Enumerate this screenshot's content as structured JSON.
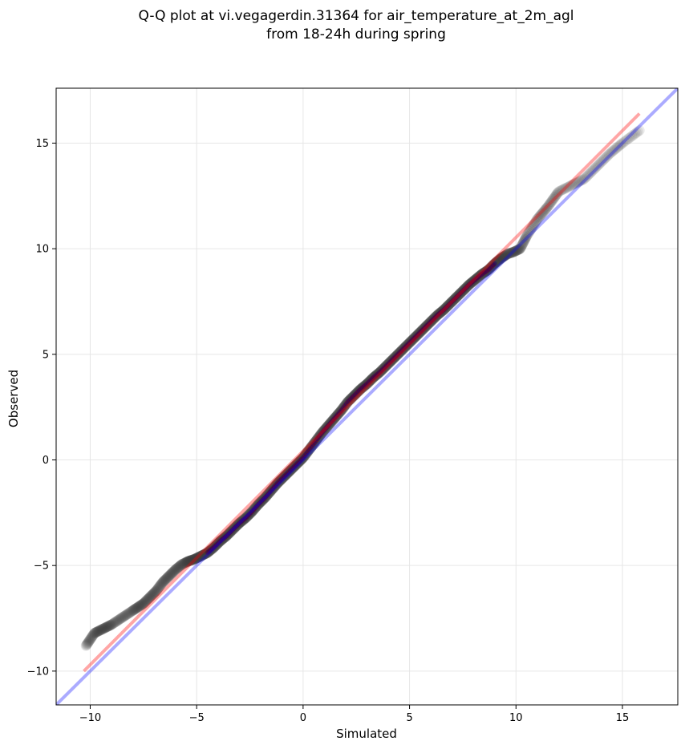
{
  "chart_data": {
    "type": "scatter",
    "title": "Q-Q plot at vi.vegagerdin.31364 for air_temperature_at_2m_agl",
    "subtitle": "from 18-24h during spring",
    "xlabel": "Simulated",
    "ylabel": "Observed",
    "xlim": [
      -11.6,
      17.6
    ],
    "ylim": [
      -11.6,
      17.6
    ],
    "xticks": [
      -10,
      -5,
      0,
      5,
      10,
      15
    ],
    "yticks": [
      -10,
      -5,
      0,
      5,
      10,
      15
    ],
    "xtick_labels": [
      "−10",
      "−5",
      "0",
      "5",
      "10",
      "15"
    ],
    "ytick_labels": [
      "−10",
      "−5",
      "0",
      "5",
      "10",
      "15"
    ],
    "grid": true,
    "colors": {
      "points": "#3c3c3c",
      "identity_line": "#0000ff",
      "fit_line": "#ff0000",
      "highlight_points": "#8b0000",
      "highlight_points_alt": "#00008b"
    },
    "identity_line": {
      "x": [
        -11.6,
        17.6
      ],
      "y": [
        -11.6,
        17.6
      ]
    },
    "fit_line": {
      "x": [
        -10.3,
        15.8
      ],
      "y": [
        -10.0,
        16.4
      ]
    },
    "quantiles": {
      "x": [
        -10.2,
        -10.0,
        -9.8,
        -9.6,
        -9.4,
        -9.2,
        -9.0,
        -8.7,
        -8.4,
        -8.1,
        -7.8,
        -7.5,
        -7.2,
        -6.9,
        -6.6,
        -6.3,
        -6.0,
        -5.7,
        -5.4,
        -5.1,
        -4.8,
        -4.5,
        -4.2,
        -3.9,
        -3.6,
        -3.3,
        -3.0,
        -2.7,
        -2.4,
        -2.1,
        -1.8,
        -1.5,
        -1.2,
        -0.9,
        -0.6,
        -0.3,
        0.0,
        0.3,
        0.6,
        0.9,
        1.2,
        1.5,
        1.8,
        2.1,
        2.4,
        2.7,
        3.0,
        3.3,
        3.6,
        3.9,
        4.2,
        4.5,
        4.8,
        5.1,
        5.4,
        5.7,
        6.0,
        6.3,
        6.6,
        6.9,
        7.2,
        7.5,
        7.8,
        8.1,
        8.4,
        8.7,
        9.0,
        9.3,
        9.6,
        9.9,
        10.2,
        10.5,
        11.0,
        11.5,
        12.0,
        12.6,
        13.2,
        13.8,
        14.4,
        15.0,
        15.8
      ],
      "y": [
        -8.8,
        -8.5,
        -8.2,
        -8.1,
        -8.0,
        -7.9,
        -7.8,
        -7.6,
        -7.4,
        -7.2,
        -7.0,
        -6.8,
        -6.5,
        -6.2,
        -5.8,
        -5.5,
        -5.2,
        -4.95,
        -4.8,
        -4.7,
        -4.55,
        -4.4,
        -4.15,
        -3.85,
        -3.6,
        -3.3,
        -3.0,
        -2.75,
        -2.45,
        -2.1,
        -1.8,
        -1.45,
        -1.1,
        -0.8,
        -0.5,
        -0.2,
        0.1,
        0.5,
        0.9,
        1.3,
        1.65,
        2.0,
        2.35,
        2.75,
        3.05,
        3.35,
        3.6,
        3.9,
        4.15,
        4.45,
        4.75,
        5.05,
        5.35,
        5.65,
        5.95,
        6.25,
        6.55,
        6.85,
        7.1,
        7.4,
        7.7,
        8.0,
        8.3,
        8.55,
        8.8,
        9.0,
        9.3,
        9.55,
        9.75,
        9.85,
        10.0,
        10.6,
        11.4,
        12.0,
        12.7,
        13.0,
        13.3,
        13.9,
        14.5,
        15.0,
        15.6
      ]
    }
  }
}
